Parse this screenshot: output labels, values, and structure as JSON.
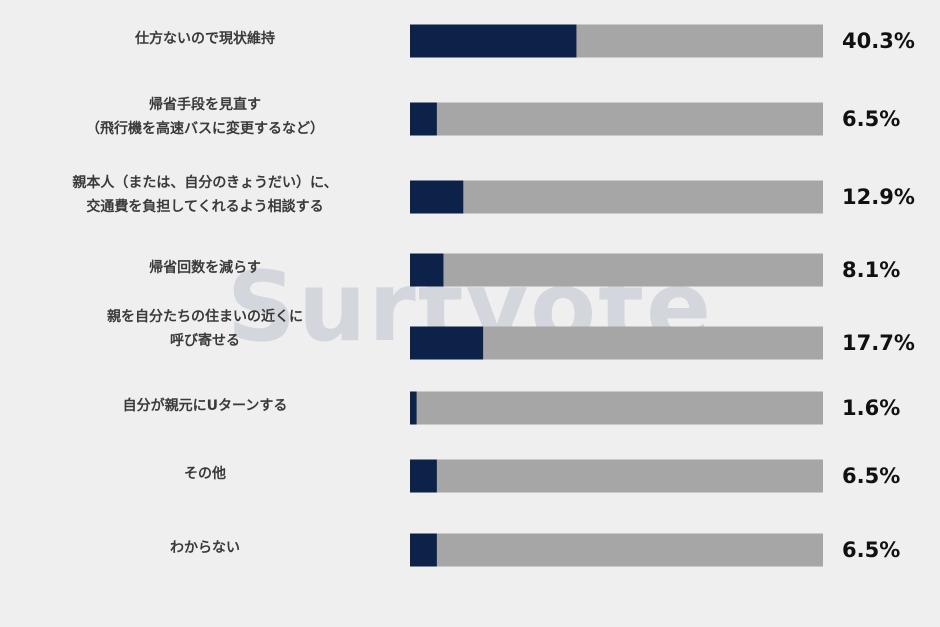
{
  "watermark": "Surtvote",
  "colors": {
    "fill": "#0d2249",
    "track": "#a6a6a6",
    "background": "#efefef"
  },
  "chart_data": {
    "type": "bar",
    "orientation": "horizontal",
    "stacked_100": true,
    "categories": [
      "仕方ないので現状維持",
      "帰省手段を見直す\n（飛行機を高速バスに変更するなど）",
      "親本人（または、自分のきょうだい）に、\n交通費を負担してくれるよう相談する",
      "帰省回数を減らす",
      "親を自分たちの住まいの近くに\n呼び寄せる",
      "自分が親元にUターンする",
      "その他",
      "わからない"
    ],
    "values": [
      40.3,
      6.5,
      12.9,
      8.1,
      17.7,
      1.6,
      6.5,
      6.5
    ],
    "value_labels": [
      "40.3%",
      "6.5%",
      "12.9%",
      "8.1%",
      "17.7%",
      "1.6%",
      "6.5%",
      "6.5%"
    ],
    "xlim": [
      0,
      100
    ],
    "grid": false
  }
}
